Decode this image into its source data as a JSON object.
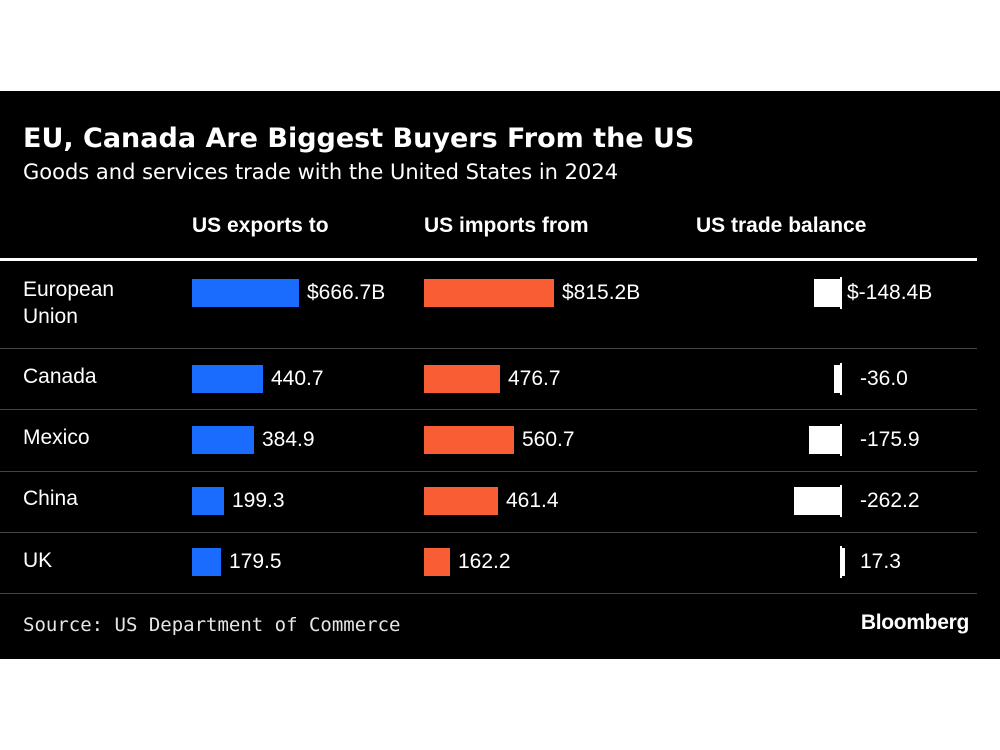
{
  "chart_data": {
    "type": "bar",
    "title": "EU, Canada Are Biggest Buyers From the US",
    "subtitle": "Goods and services trade with the United States in 2024",
    "categories": [
      "European Union",
      "Canada",
      "Mexico",
      "China",
      "UK"
    ],
    "category_labels": [
      [
        "European",
        "Union"
      ],
      [
        "Canada"
      ],
      [
        "Mexico"
      ],
      [
        "China"
      ],
      [
        "UK"
      ]
    ],
    "series": [
      {
        "name": "US exports to",
        "values": [
          666.7,
          440.7,
          384.9,
          199.3,
          179.5
        ],
        "labels": [
          "$666.7B",
          "440.7",
          "384.9",
          "199.3",
          "179.5"
        ]
      },
      {
        "name": "US imports from",
        "values": [
          815.2,
          476.7,
          560.7,
          461.4,
          162.2
        ],
        "labels": [
          "$815.2B",
          "476.7",
          "560.7",
          "461.4",
          "162.2"
        ]
      },
      {
        "name": "US trade balance",
        "values": [
          -148.4,
          -36.0,
          -175.9,
          -262.2,
          17.3
        ],
        "labels": [
          "$-148.4B",
          "-36.0",
          "-175.9",
          "-262.2",
          "17.3"
        ]
      }
    ],
    "colors": {
      "exports": "#1a6cff",
      "imports": "#f95d33",
      "balance": "#ffffff",
      "background": "#000000"
    },
    "source": "Source: US Department of Commerce",
    "brand": "Bloomberg"
  }
}
